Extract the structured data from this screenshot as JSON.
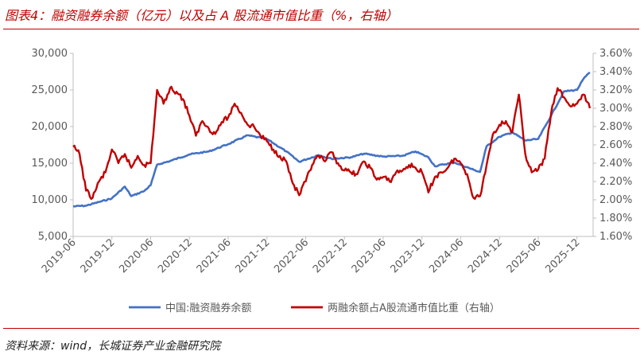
{
  "title": "图表4：融资融券余额（亿元）以及占 A 股流通市值比重（%，右轴）",
  "source": "资料来源：wind，长城证券产业金融研究院",
  "colors": {
    "accent": "#c00000",
    "blue": "#4472c4",
    "red": "#c00000"
  },
  "chart_data": {
    "type": "line",
    "x_tick_labels": [
      "2019-06",
      "2019-12",
      "2020-06",
      "2020-12",
      "2021-06",
      "2021-12",
      "2022-06",
      "2022-12",
      "2023-06",
      "2023-12",
      "2024-06",
      "2024-12",
      "2025-06",
      "2025-12"
    ],
    "y_left": {
      "ylim": [
        5000,
        30000
      ],
      "ticks": [
        "5,000",
        "10,000",
        "15,000",
        "20,000",
        "25,000",
        "30,000"
      ]
    },
    "y_right": {
      "ylim": [
        1.6,
        3.6
      ],
      "ticks": [
        "1.60%",
        "1.80%",
        "2.00%",
        "2.20%",
        "2.40%",
        "2.60%",
        "2.80%",
        "3.00%",
        "3.20%",
        "3.40%",
        "3.60%"
      ]
    },
    "grid": false,
    "legend_position": "bottom",
    "series": [
      {
        "name": "中国:融资融券余额",
        "axis": "left",
        "color": "#4472c4",
        "points": [
          [
            "2019-06",
            9100
          ],
          [
            "2019-08",
            9200
          ],
          [
            "2019-10",
            9700
          ],
          [
            "2019-12",
            10200
          ],
          [
            "2020-02",
            11800
          ],
          [
            "2020-03",
            10500
          ],
          [
            "2020-05",
            11200
          ],
          [
            "2020-06",
            12000
          ],
          [
            "2020-07",
            14800
          ],
          [
            "2020-09",
            15300
          ],
          [
            "2020-12",
            16200
          ],
          [
            "2021-03",
            16600
          ],
          [
            "2021-06",
            17600
          ],
          [
            "2021-09",
            18800
          ],
          [
            "2021-12",
            18300
          ],
          [
            "2022-03",
            16600
          ],
          [
            "2022-05",
            15200
          ],
          [
            "2022-08",
            16100
          ],
          [
            "2022-10",
            15600
          ],
          [
            "2023-01",
            15800
          ],
          [
            "2023-03",
            16300
          ],
          [
            "2023-06",
            15900
          ],
          [
            "2023-09",
            16000
          ],
          [
            "2023-11",
            16600
          ],
          [
            "2024-01",
            15800
          ],
          [
            "2024-02",
            14600
          ],
          [
            "2024-05",
            15100
          ],
          [
            "2024-08",
            14100
          ],
          [
            "2024-09",
            13800
          ],
          [
            "2024-10",
            17300
          ],
          [
            "2024-12",
            18600
          ],
          [
            "2025-02",
            19200
          ],
          [
            "2025-04",
            18100
          ],
          [
            "2025-06",
            18300
          ],
          [
            "2025-08",
            21500
          ],
          [
            "2025-10",
            24800
          ],
          [
            "2025-12",
            25000
          ],
          [
            "2026-01",
            26500
          ],
          [
            "2026-02",
            27400
          ]
        ]
      },
      {
        "name": "两融余额占A股流通市值比重（右轴）",
        "axis": "right",
        "color": "#c00000",
        "points": [
          [
            "2019-06",
            2.58
          ],
          [
            "2019-07",
            2.5
          ],
          [
            "2019-08",
            2.1
          ],
          [
            "2019-09",
            2.02
          ],
          [
            "2019-10",
            2.2
          ],
          [
            "2019-11",
            2.3
          ],
          [
            "2019-12",
            2.55
          ],
          [
            "2020-01",
            2.4
          ],
          [
            "2020-02",
            2.5
          ],
          [
            "2020-03",
            2.35
          ],
          [
            "2020-04",
            2.48
          ],
          [
            "2020-05",
            2.38
          ],
          [
            "2020-06",
            2.4
          ],
          [
            "2020-07",
            3.2
          ],
          [
            "2020-08",
            3.05
          ],
          [
            "2020-09",
            3.22
          ],
          [
            "2020-10",
            3.18
          ],
          [
            "2020-11",
            3.1
          ],
          [
            "2020-12",
            2.92
          ],
          [
            "2021-01",
            2.7
          ],
          [
            "2021-02",
            2.86
          ],
          [
            "2021-03",
            2.78
          ],
          [
            "2021-04",
            2.72
          ],
          [
            "2021-05",
            2.85
          ],
          [
            "2021-06",
            2.9
          ],
          [
            "2021-07",
            3.05
          ],
          [
            "2021-08",
            2.95
          ],
          [
            "2021-09",
            2.82
          ],
          [
            "2021-10",
            2.8
          ],
          [
            "2021-11",
            2.7
          ],
          [
            "2021-12",
            2.64
          ],
          [
            "2022-01",
            2.55
          ],
          [
            "2022-02",
            2.48
          ],
          [
            "2022-03",
            2.42
          ],
          [
            "2022-04",
            2.18
          ],
          [
            "2022-05",
            2.05
          ],
          [
            "2022-06",
            2.2
          ],
          [
            "2022-07",
            2.38
          ],
          [
            "2022-08",
            2.48
          ],
          [
            "2022-09",
            2.42
          ],
          [
            "2022-10",
            2.52
          ],
          [
            "2022-11",
            2.4
          ],
          [
            "2022-12",
            2.32
          ],
          [
            "2023-01",
            2.3
          ],
          [
            "2023-02",
            2.28
          ],
          [
            "2023-03",
            2.42
          ],
          [
            "2023-04",
            2.35
          ],
          [
            "2023-05",
            2.22
          ],
          [
            "2023-06",
            2.25
          ],
          [
            "2023-07",
            2.2
          ],
          [
            "2023-08",
            2.3
          ],
          [
            "2023-09",
            2.32
          ],
          [
            "2023-10",
            2.38
          ],
          [
            "2023-11",
            2.35
          ],
          [
            "2023-12",
            2.3
          ],
          [
            "2024-01",
            2.08
          ],
          [
            "2024-02",
            2.25
          ],
          [
            "2024-03",
            2.3
          ],
          [
            "2024-04",
            2.35
          ],
          [
            "2024-05",
            2.45
          ],
          [
            "2024-06",
            2.4
          ],
          [
            "2024-07",
            2.28
          ],
          [
            "2024-08",
            2.02
          ],
          [
            "2024-09",
            2.04
          ],
          [
            "2024-10",
            2.38
          ],
          [
            "2024-11",
            2.72
          ],
          [
            "2024-12",
            2.82
          ],
          [
            "2025-01",
            2.86
          ],
          [
            "2025-02",
            2.74
          ],
          [
            "2025-03",
            3.15
          ],
          [
            "2025-04",
            2.5
          ],
          [
            "2025-05",
            2.3
          ],
          [
            "2025-06",
            2.33
          ],
          [
            "2025-07",
            2.45
          ],
          [
            "2025-08",
            2.95
          ],
          [
            "2025-09",
            3.22
          ],
          [
            "2025-10",
            3.12
          ],
          [
            "2025-11",
            3.02
          ],
          [
            "2025-12",
            3.05
          ],
          [
            "2026-01",
            3.15
          ],
          [
            "2026-02",
            3.0
          ]
        ]
      }
    ]
  }
}
